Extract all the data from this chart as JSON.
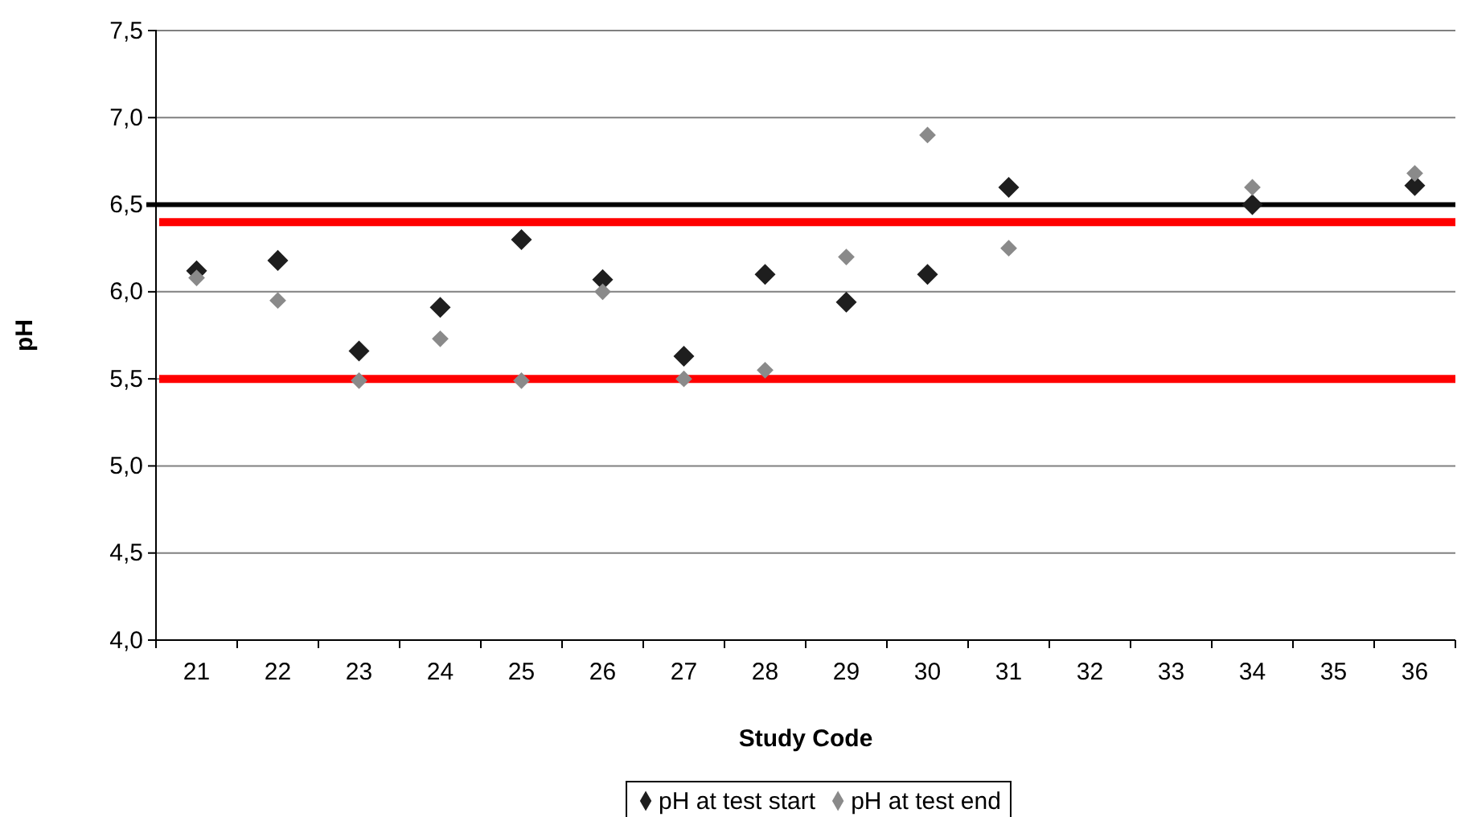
{
  "chart_data": {
    "type": "scatter",
    "xlabel": "Study Code",
    "ylabel": "pH",
    "categories": [
      "21",
      "22",
      "23",
      "24",
      "25",
      "26",
      "27",
      "28",
      "29",
      "30",
      "31",
      "32",
      "33",
      "34",
      "35",
      "36"
    ],
    "series": [
      {
        "name": "pH at test start",
        "color": "#1e1e1e",
        "values": [
          6.12,
          6.18,
          5.66,
          5.91,
          6.3,
          6.07,
          5.63,
          6.1,
          5.94,
          6.1,
          6.6,
          null,
          null,
          6.5,
          null,
          6.61
        ]
      },
      {
        "name": "pH at test end",
        "color": "#8a8a8a",
        "values": [
          6.08,
          5.95,
          5.49,
          5.73,
          5.49,
          6.0,
          5.5,
          5.55,
          6.2,
          6.9,
          6.25,
          null,
          null,
          6.6,
          null,
          6.68
        ]
      }
    ],
    "ylim": [
      4.0,
      7.5
    ],
    "yticks": [
      {
        "value": 4.0,
        "label": "4,0"
      },
      {
        "value": 4.5,
        "label": "4,5"
      },
      {
        "value": 5.0,
        "label": "5,0"
      },
      {
        "value": 5.5,
        "label": "5,5"
      },
      {
        "value": 6.0,
        "label": "6,0"
      },
      {
        "value": 6.5,
        "label": "6,5"
      },
      {
        "value": 7.0,
        "label": "7,0"
      },
      {
        "value": 7.5,
        "label": "7,5"
      }
    ],
    "ref_lines": [
      {
        "axis": "y",
        "value": 6.5,
        "color": "#000000"
      },
      {
        "axis": "y",
        "value": 6.4,
        "color": "#ff0000"
      },
      {
        "axis": "y",
        "value": 5.5,
        "color": "#ff0000"
      }
    ],
    "grid": "y",
    "legend": "bottom",
    "marker": "diamond"
  }
}
